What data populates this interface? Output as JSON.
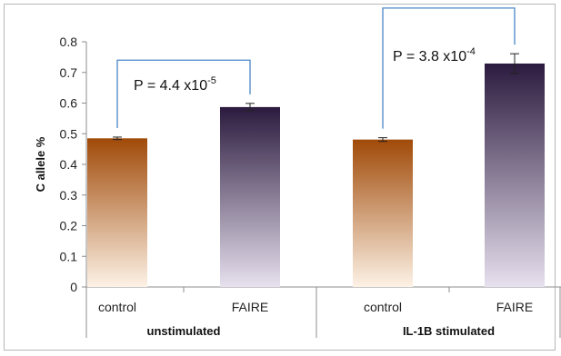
{
  "chart_data": {
    "type": "bar",
    "title": "",
    "xlabel": "",
    "ylabel": "C allele %",
    "ylim": [
      0,
      0.8
    ],
    "yticks": [
      "0",
      "0.1",
      "0.2",
      "0.3",
      "0.4",
      "0.5",
      "0.6",
      "0.7",
      "0.8"
    ],
    "grid": false,
    "categories": [
      "control",
      "FAIRE",
      "control",
      "FAIRE"
    ],
    "groups": [
      {
        "label": "unstimulated",
        "categories": [
          "control",
          "FAIRE"
        ]
      },
      {
        "label": "IL-1B stimulated",
        "categories": [
          "control",
          "FAIRE"
        ]
      }
    ],
    "values": [
      0.485,
      0.587,
      0.481,
      0.729
    ],
    "errors": [
      0.004,
      0.012,
      0.006,
      0.032
    ],
    "bar_gradients": [
      {
        "top": "#a04a08",
        "bottom": "#fdf2e6"
      },
      {
        "top": "#2b1a3e",
        "bottom": "#e7e0ee"
      },
      {
        "top": "#a04a08",
        "bottom": "#fdf2e6"
      },
      {
        "top": "#2b1a3e",
        "bottom": "#e7e0ee"
      }
    ],
    "annotations": [
      {
        "from": 0,
        "to": 1,
        "y": 0.74,
        "text_main": "P = 4.4 x10",
        "text_exp": "-5"
      },
      {
        "from": 2,
        "to": 3,
        "y": 0.91,
        "text_main": "P = 3.8 x10",
        "text_exp": "-4"
      }
    ],
    "bracket_color": "#4a86c5"
  }
}
